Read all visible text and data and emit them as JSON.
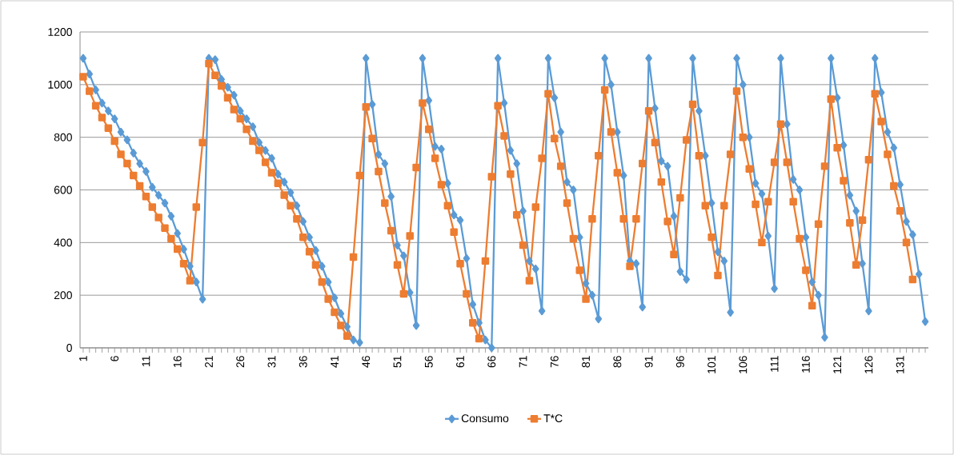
{
  "chart_data": {
    "type": "line",
    "categories": [
      "1",
      null,
      null,
      null,
      null,
      "6",
      null,
      null,
      null,
      null,
      "11",
      null,
      null,
      null,
      null,
      "16",
      null,
      null,
      null,
      null,
      "21",
      null,
      null,
      null,
      null,
      "26",
      null,
      null,
      null,
      null,
      "31",
      null,
      null,
      null,
      null,
      "36",
      null,
      null,
      null,
      null,
      "41",
      null,
      null,
      null,
      null,
      "46",
      null,
      null,
      null,
      null,
      "51",
      null,
      null,
      null,
      null,
      "56",
      null,
      null,
      null,
      null,
      "61",
      null,
      null,
      null,
      null,
      "66",
      null,
      null,
      null,
      null,
      "71",
      null,
      null,
      null,
      null,
      "76",
      null,
      null,
      null,
      null,
      "81",
      null,
      null,
      null,
      null,
      "86",
      null,
      null,
      null,
      null,
      "91",
      null,
      null,
      null,
      null,
      "96",
      null,
      null,
      null,
      null,
      "101",
      null,
      null,
      null,
      null,
      "106",
      null,
      null,
      null,
      null,
      "111",
      null,
      null,
      null,
      null,
      "116",
      null,
      null,
      null,
      null,
      "121",
      null,
      null,
      null,
      null,
      "126",
      null,
      null,
      null,
      null,
      "131",
      null,
      null,
      null,
      null
    ],
    "ylim": [
      0,
      1200
    ],
    "yticks": [
      0,
      200,
      400,
      600,
      800,
      1000,
      1200
    ],
    "grid": "y",
    "legend": "bottom",
    "series": [
      {
        "name": "Consumo",
        "color": "#5b9bd5",
        "marker": "diamond",
        "values": [
          1100,
          1040,
          980,
          930,
          900,
          870,
          820,
          790,
          740,
          700,
          670,
          610,
          580,
          550,
          500,
          435,
          375,
          310,
          250,
          185,
          1100,
          1095,
          1020,
          990,
          960,
          900,
          870,
          840,
          780,
          750,
          720,
          660,
          630,
          590,
          540,
          480,
          420,
          370,
          310,
          250,
          190,
          130,
          80,
          30,
          20,
          1100,
          925,
          735,
          700,
          575,
          390,
          350,
          210,
          85,
          1100,
          940,
          765,
          755,
          625,
          505,
          485,
          340,
          165,
          95,
          30,
          0,
          1100,
          930,
          750,
          700,
          520,
          330,
          300,
          140,
          1100,
          950,
          820,
          630,
          600,
          420,
          245,
          200,
          110,
          1100,
          1000,
          820,
          655,
          330,
          320,
          155,
          1100,
          910,
          710,
          690,
          500,
          290,
          260,
          1100,
          900,
          730,
          550,
          365,
          330,
          135,
          1100,
          1000,
          800,
          625,
          585,
          425,
          225,
          1100,
          850,
          640,
          600,
          420,
          250,
          200,
          40,
          1100,
          950,
          770,
          580,
          520,
          320,
          140,
          1100,
          970,
          820,
          760,
          620,
          480,
          430,
          280,
          100
        ]
      },
      {
        "name": "T*C",
        "color": "#ed7d31",
        "marker": "square",
        "values": [
          1030,
          975,
          920,
          875,
          835,
          785,
          735,
          700,
          655,
          615,
          575,
          535,
          495,
          455,
          415,
          375,
          320,
          255,
          535,
          780,
          1080,
          1035,
          995,
          950,
          905,
          870,
          830,
          785,
          750,
          705,
          665,
          625,
          580,
          540,
          490,
          420,
          365,
          315,
          250,
          185,
          135,
          85,
          45,
          345,
          655,
          915,
          795,
          670,
          550,
          445,
          315,
          205,
          425,
          685,
          930,
          830,
          720,
          620,
          540,
          440,
          320,
          205,
          95,
          35,
          330,
          650,
          920,
          805,
          660,
          505,
          390,
          255,
          535,
          720,
          965,
          795,
          690,
          550,
          415,
          295,
          185,
          490,
          730,
          980,
          820,
          665,
          490,
          310,
          490,
          700,
          900,
          780,
          630,
          480,
          355,
          570,
          790,
          925,
          730,
          540,
          420,
          275,
          540,
          735,
          975,
          800,
          680,
          545,
          400,
          555,
          705,
          850,
          705,
          555,
          415,
          295,
          160,
          470,
          690,
          945,
          760,
          635,
          475,
          315,
          485,
          715,
          965,
          860,
          735,
          615,
          520,
          400,
          260,
          null,
          null
        ]
      }
    ]
  }
}
